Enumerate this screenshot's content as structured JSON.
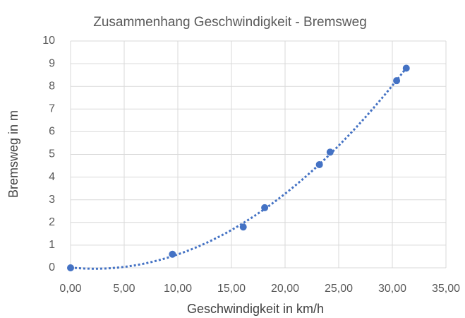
{
  "chart_data": {
    "type": "scatter",
    "title": "Zusammenhang Geschwindigkeit - Bremsweg",
    "x_label": "Geschwindigkeit in km/h",
    "y_label": "Bremsweg in m",
    "series": [
      {
        "name": "Bremsweg",
        "color": "#4472c4",
        "x": [
          0,
          9.5,
          16.1,
          18.1,
          23.2,
          24.2,
          30.4,
          31.3
        ],
        "values": [
          0,
          0.6,
          1.8,
          2.65,
          4.55,
          5.1,
          8.25,
          8.8
        ]
      }
    ],
    "trendline": {
      "type": "polynomial",
      "order": 2,
      "style": "dotted"
    },
    "xlim": [
      0,
      35
    ],
    "xticks": [
      {
        "value": 0,
        "label": "0,00"
      },
      {
        "value": 5,
        "label": "5,00"
      },
      {
        "value": 10,
        "label": "10,00"
      },
      {
        "value": 15,
        "label": "15,00"
      },
      {
        "value": 20,
        "label": "20,00"
      },
      {
        "value": 25,
        "label": "25,00"
      },
      {
        "value": 30,
        "label": "30,00"
      },
      {
        "value": 35,
        "label": "35,00"
      }
    ],
    "ylim": [
      0,
      10
    ],
    "yticks": [
      0,
      1,
      2,
      3,
      4,
      5,
      6,
      7,
      8,
      9,
      10
    ],
    "grid": true
  }
}
